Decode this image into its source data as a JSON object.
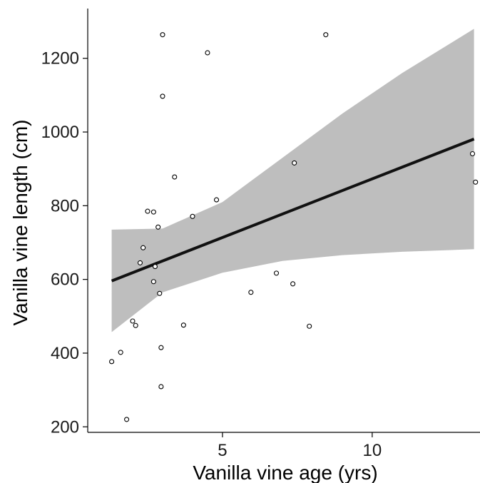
{
  "chart_data": {
    "type": "scatter",
    "xlabel": "Vanilla vine age (yrs)",
    "ylabel": "Vanilla vine length (cm)",
    "xlim": [
      0.5,
      13.6
    ],
    "ylim": [
      185,
      1335
    ],
    "xticks": [
      5,
      10
    ],
    "yticks": [
      200,
      400,
      600,
      800,
      1000,
      1200
    ],
    "grid": false,
    "points": [
      {
        "x": 1.3,
        "y": 377
      },
      {
        "x": 1.6,
        "y": 402
      },
      {
        "x": 1.8,
        "y": 220
      },
      {
        "x": 2.0,
        "y": 487
      },
      {
        "x": 2.1,
        "y": 475
      },
      {
        "x": 2.25,
        "y": 645
      },
      {
        "x": 2.35,
        "y": 686
      },
      {
        "x": 2.5,
        "y": 785
      },
      {
        "x": 2.7,
        "y": 783
      },
      {
        "x": 2.7,
        "y": 594
      },
      {
        "x": 2.75,
        "y": 635
      },
      {
        "x": 2.85,
        "y": 742
      },
      {
        "x": 2.9,
        "y": 562
      },
      {
        "x": 2.95,
        "y": 415
      },
      {
        "x": 2.95,
        "y": 309
      },
      {
        "x": 3.0,
        "y": 1264
      },
      {
        "x": 3.0,
        "y": 1097
      },
      {
        "x": 3.4,
        "y": 878
      },
      {
        "x": 3.7,
        "y": 476
      },
      {
        "x": 4.0,
        "y": 771
      },
      {
        "x": 4.5,
        "y": 1215
      },
      {
        "x": 4.8,
        "y": 816
      },
      {
        "x": 5.95,
        "y": 565
      },
      {
        "x": 6.8,
        "y": 617
      },
      {
        "x": 7.35,
        "y": 588
      },
      {
        "x": 7.4,
        "y": 916
      },
      {
        "x": 7.9,
        "y": 473
      },
      {
        "x": 8.45,
        "y": 1264
      },
      {
        "x": 13.35,
        "y": 941
      },
      {
        "x": 13.45,
        "y": 864
      }
    ],
    "fit_line": {
      "x": [
        1.3,
        13.4
      ],
      "y": [
        596,
        981
      ],
      "color": "#111111"
    },
    "confidence_band": {
      "x": [
        1.3,
        3.0,
        5.0,
        7.0,
        9.0,
        11.0,
        13.4
      ],
      "lower": [
        457,
        565,
        618,
        650,
        666,
        675,
        682
      ],
      "upper": [
        735,
        738,
        810,
        930,
        1050,
        1160,
        1280
      ],
      "color": "#bebebe"
    }
  }
}
